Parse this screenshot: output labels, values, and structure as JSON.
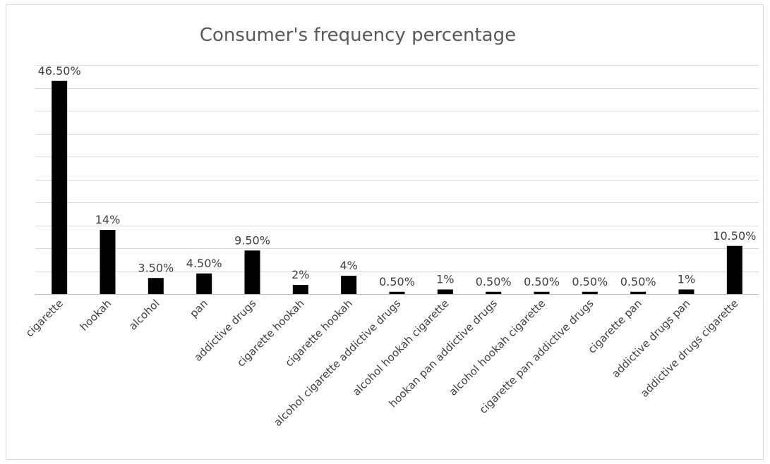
{
  "chart_data": {
    "type": "bar",
    "title": "Consumer's frequency percentage",
    "xlabel": "",
    "ylabel": "",
    "categories": [
      "cigarette",
      "hookah",
      "alcohol",
      "pan",
      "addictive drugs",
      "cigarette hookah",
      "cigarette hookah",
      "alcohol cigarette addictive drugs",
      "alcohol hookah cigarette",
      "hookan pan addictive drugs",
      "alcohol hookah cigarette",
      "cigarette pan addictive drugs",
      "cigarette pan",
      "addictive drugs pan",
      "addictive drugs cigarette"
    ],
    "values": [
      46.5,
      14,
      3.5,
      4.5,
      9.5,
      2,
      4,
      0.5,
      1,
      0.5,
      0.5,
      0.5,
      0.5,
      1,
      10.5
    ],
    "data_labels": [
      "46.50%",
      "14%",
      "3.50%",
      "4.50%",
      "9.50%",
      "2%",
      "4%",
      "0.50%",
      "1%",
      "0.50%",
      "0.50%",
      "0.50%",
      "0.50%",
      "1%",
      "10.50%"
    ],
    "ylim": [
      0,
      50
    ],
    "grid": true,
    "bar_color": "#000000",
    "gridline_color": "#d9d9d9",
    "title_color": "#595959"
  }
}
